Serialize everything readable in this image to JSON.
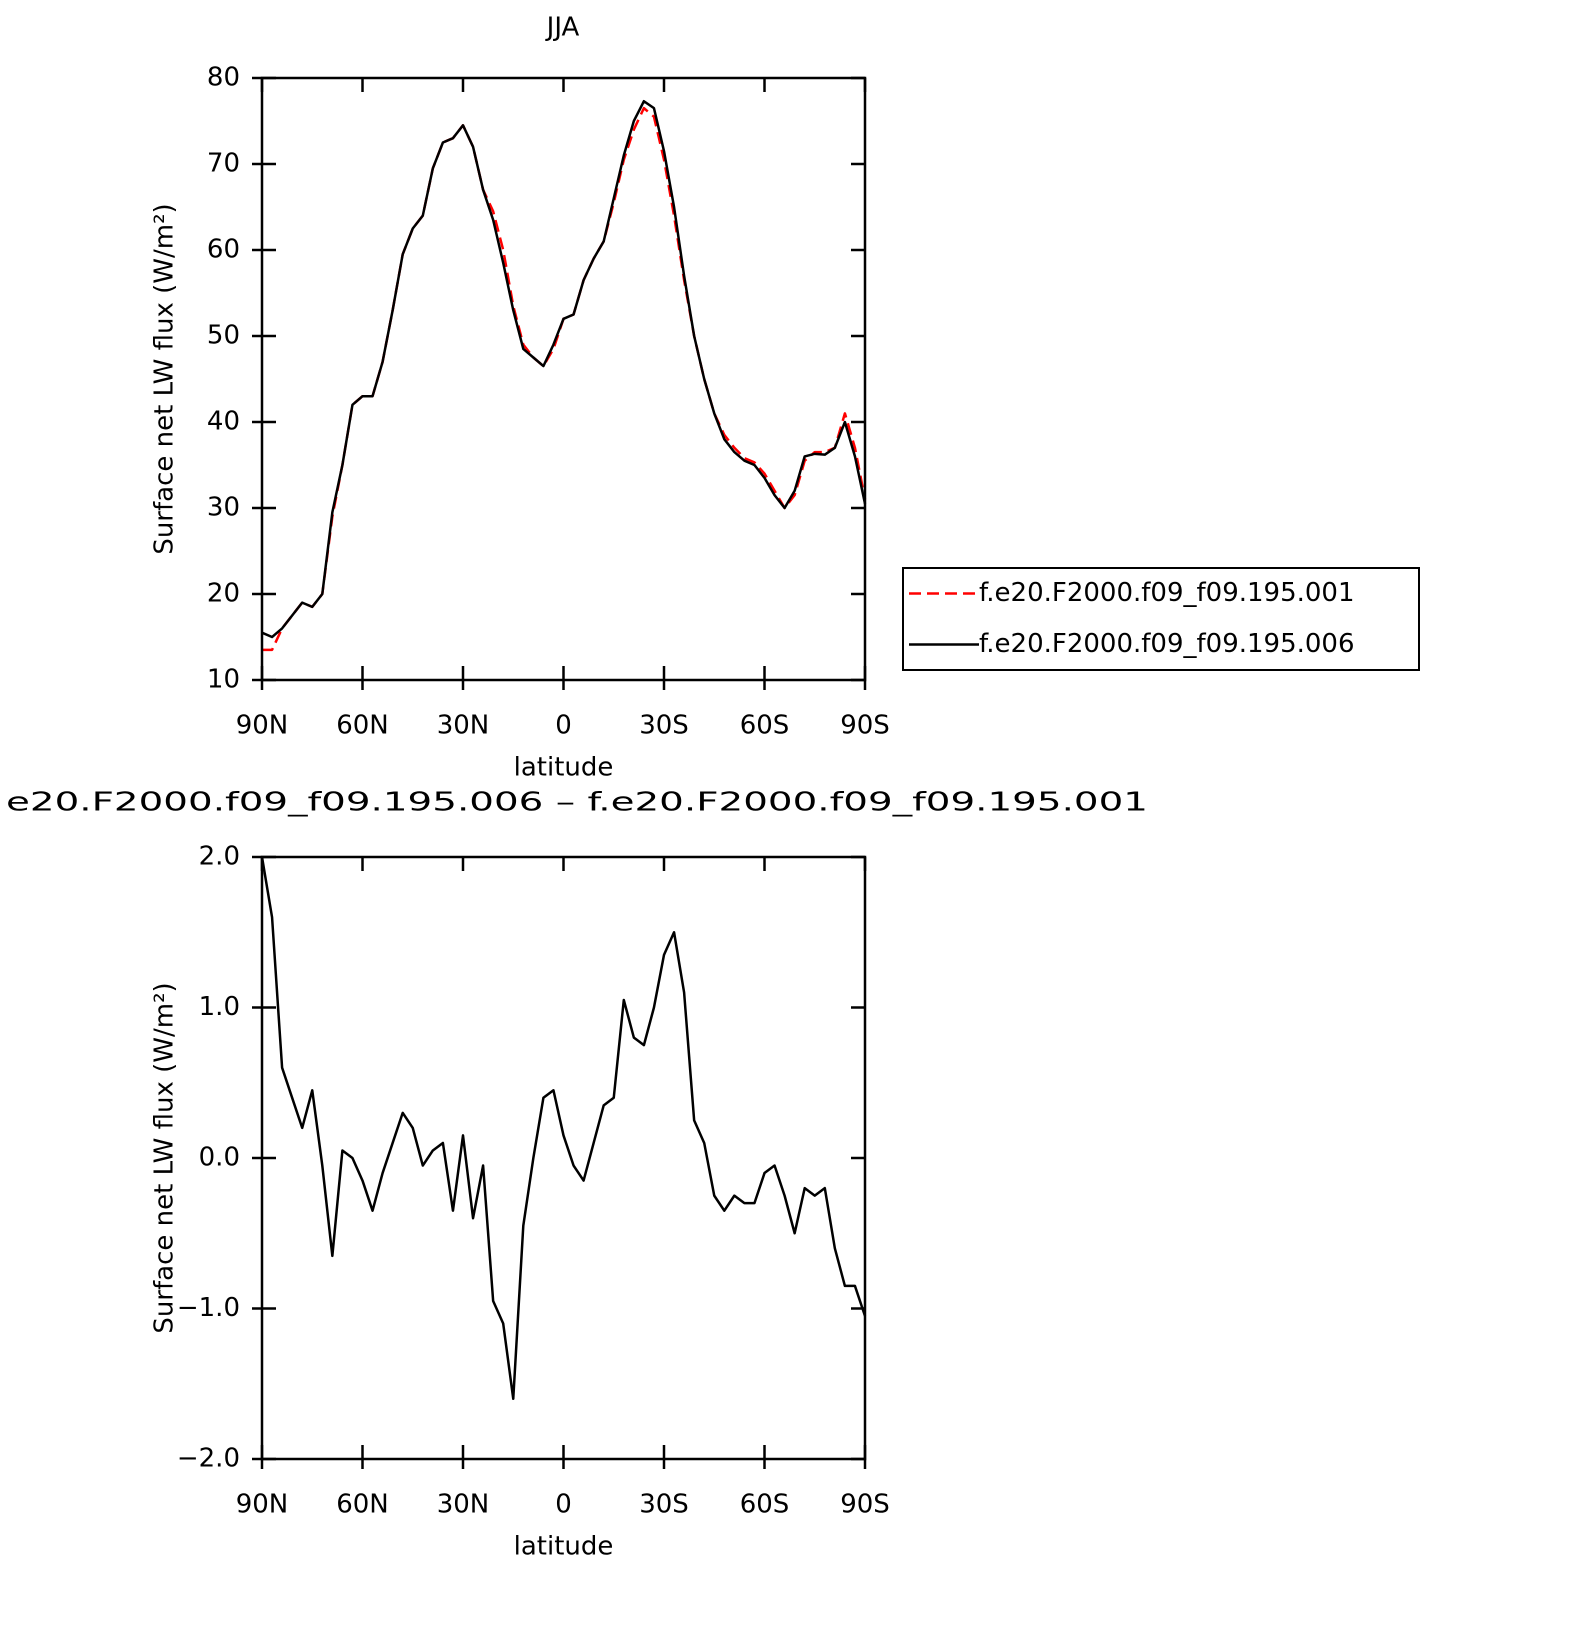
{
  "chart_data": [
    {
      "type": "line",
      "title": "JJA",
      "x_label": "latitude",
      "y_label": "Surface net LW flux (W/m²)",
      "x": [
        90,
        87,
        84,
        81,
        78,
        75,
        72,
        69,
        66,
        63,
        60,
        57,
        54,
        51,
        48,
        45,
        42,
        39,
        36,
        33,
        30,
        27,
        24,
        21,
        18,
        15,
        12,
        9,
        6,
        3,
        0,
        -3,
        -6,
        -9,
        -12,
        -15,
        -18,
        -21,
        -24,
        -27,
        -30,
        -33,
        -36,
        -39,
        -42,
        -45,
        -48,
        -51,
        -54,
        -57,
        -60,
        -63,
        -66,
        -69,
        -72,
        -75,
        -78,
        -81,
        -84,
        -87,
        -90
      ],
      "series": [
        {
          "name": "f.e20.F2000.f09_f09.195.001",
          "color": "#ff0000",
          "dash": "dashed",
          "values": [
            13.5,
            13.5,
            16,
            17.5,
            19,
            18.5,
            20,
            29,
            35,
            42,
            43,
            43,
            47,
            53,
            59.5,
            62.5,
            64,
            69.5,
            72.5,
            73,
            74.5,
            72,
            67,
            64.5,
            60,
            53.5,
            49,
            47.5,
            46.5,
            48.5,
            52,
            52.5,
            56.5,
            59,
            61,
            65.5,
            70.5,
            74,
            76.5,
            75.5,
            70.5,
            64,
            56.5,
            50,
            45,
            41,
            38.5,
            37,
            35.8,
            35.3,
            34,
            32,
            30,
            31.5,
            35.5,
            36.5,
            36.5,
            37,
            41,
            37,
            31
          ]
        },
        {
          "name": "f.e20.F2000.f09_f09.195.006",
          "color": "#000000",
          "dash": "solid",
          "values": [
            15.5,
            15,
            16,
            17.5,
            19,
            18.5,
            20,
            29.5,
            35,
            42,
            43,
            43,
            47,
            53,
            59.5,
            62.5,
            64,
            69.5,
            72.5,
            73,
            74.5,
            72,
            67,
            63.5,
            58.5,
            53,
            48.5,
            47.5,
            46.5,
            49,
            52,
            52.5,
            56.5,
            59,
            61,
            66,
            71,
            75,
            77.3,
            76.5,
            71.5,
            65,
            57,
            50,
            45,
            41,
            38,
            36.5,
            35.5,
            35,
            33.5,
            31.5,
            30,
            32,
            36,
            36.3,
            36.2,
            37,
            40,
            36,
            30.5
          ]
        }
      ],
      "xlim": [
        90,
        -90
      ],
      "xticks": [
        {
          "value": 90,
          "label": "90N"
        },
        {
          "value": 60,
          "label": "60N"
        },
        {
          "value": 30,
          "label": "30N"
        },
        0,
        {
          "value": -30,
          "label": "30S"
        },
        {
          "value": -60,
          "label": "60S"
        },
        {
          "value": -90,
          "label": "90S"
        }
      ],
      "ylim": [
        10,
        80
      ],
      "yticks": [
        10,
        20,
        30,
        40,
        50,
        60,
        70,
        80
      ],
      "legend": "right"
    },
    {
      "type": "line",
      "title": "e20.F2000.f09_f09.195.006 – f.e20.F2000.f09_f09.195.001",
      "x_label": "latitude",
      "y_label": "Surface net LW flux (W/m²)",
      "x": [
        90,
        87,
        84,
        81,
        78,
        75,
        72,
        69,
        66,
        63,
        60,
        57,
        54,
        51,
        48,
        45,
        42,
        39,
        36,
        33,
        30,
        27,
        24,
        21,
        18,
        15,
        12,
        9,
        6,
        3,
        0,
        -3,
        -6,
        -9,
        -12,
        -15,
        -18,
        -21,
        -24,
        -27,
        -30,
        -33,
        -36,
        -39,
        -42,
        -45,
        -48,
        -51,
        -54,
        -57,
        -60,
        -63,
        -66,
        -69,
        -72,
        -75,
        -78,
        -81,
        -84,
        -87,
        -90
      ],
      "series": [
        {
          "color": "#000000",
          "dash": "solid",
          "values": [
            2.0,
            1.6,
            0.6,
            0.4,
            0.2,
            0.45,
            -0.05,
            -0.65,
            0.05,
            0.0,
            -0.15,
            -0.35,
            -0.1,
            0.1,
            0.3,
            0.2,
            -0.05,
            0.05,
            0.1,
            -0.35,
            0.15,
            -0.4,
            -0.05,
            -0.95,
            -1.1,
            -1.6,
            -0.45,
            0.0,
            0.4,
            0.45,
            0.15,
            -0.05,
            -0.15,
            0.1,
            0.35,
            0.4,
            1.05,
            0.8,
            0.75,
            1.0,
            1.35,
            1.5,
            1.1,
            0.25,
            0.1,
            -0.25,
            -0.35,
            -0.25,
            -0.3,
            -0.3,
            -0.1,
            -0.05,
            -0.25,
            -0.5,
            -0.2,
            -0.25,
            -0.2,
            -0.6,
            -0.85,
            -0.85,
            -1.05
          ]
        }
      ],
      "xlim": [
        90,
        -90
      ],
      "xticks": [
        {
          "value": 90,
          "label": "90N"
        },
        {
          "value": 60,
          "label": "60N"
        },
        {
          "value": 30,
          "label": "30N"
        },
        0,
        {
          "value": -30,
          "label": "30S"
        },
        {
          "value": -60,
          "label": "60S"
        },
        {
          "value": -90,
          "label": "90S"
        }
      ],
      "ylim": [
        -2.0,
        2.0
      ],
      "yticks": [
        {
          "value": -2.0,
          "label": "−2.0"
        },
        {
          "value": -1.0,
          "label": "−1.0"
        },
        {
          "value": 0.0,
          "label": "0.0"
        },
        {
          "value": 1.0,
          "label": "1.0"
        },
        {
          "value": 2.0,
          "label": "2.0"
        }
      ]
    }
  ]
}
